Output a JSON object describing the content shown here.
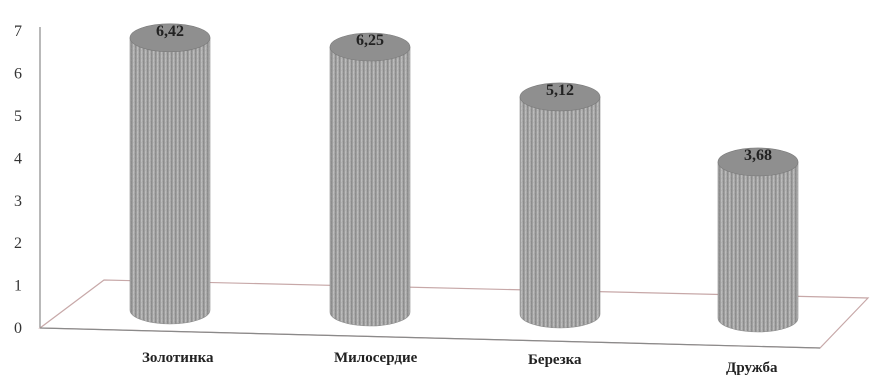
{
  "chart_data": {
    "type": "bar",
    "style": "3d-cylinder",
    "categories": [
      "Золотинка",
      "Милосердие",
      "Березка",
      "Дружба"
    ],
    "values": [
      6.42,
      6.25,
      5.12,
      3.68
    ],
    "value_labels": [
      "6,42",
      "6,25",
      "5,12",
      "3,68"
    ],
    "yticks": [
      "0",
      "1",
      "2",
      "3",
      "4",
      "5",
      "6",
      "7"
    ],
    "ylim": [
      0,
      7
    ],
    "grid": false,
    "legend": "none",
    "colors": {
      "bar": "#a9a9a9",
      "bar_top": "#8f8f8f",
      "axis": "#888888",
      "floor": "#c7a8a8"
    }
  }
}
